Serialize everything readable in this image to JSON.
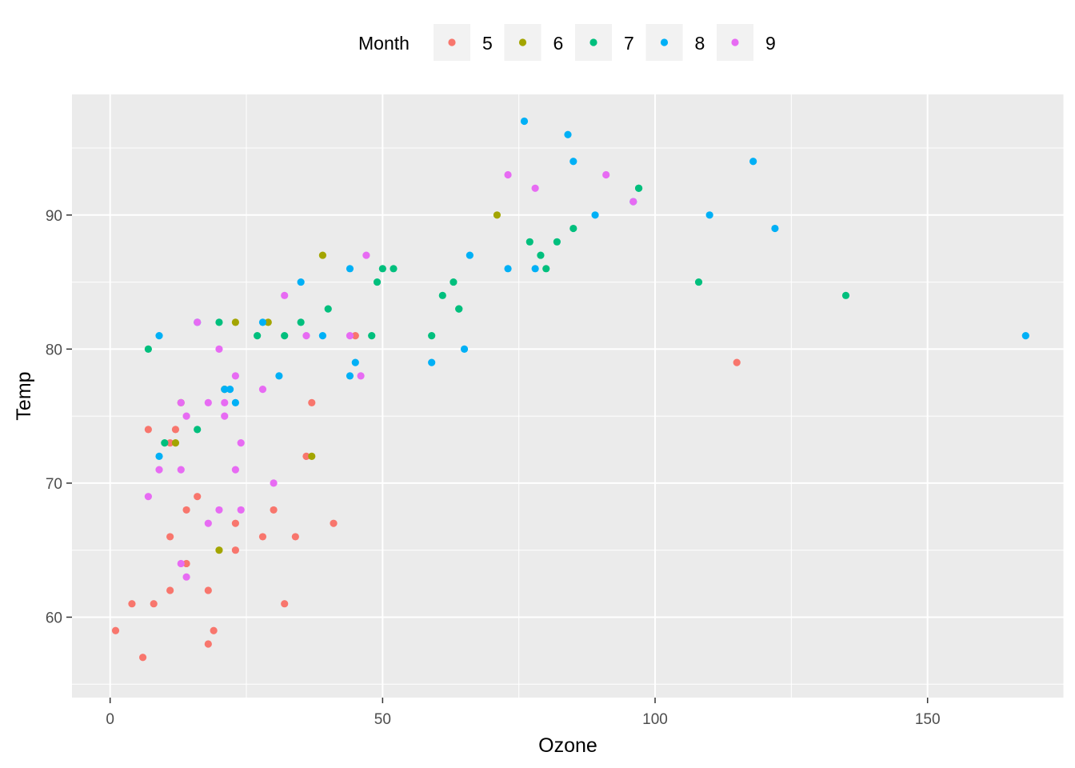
{
  "chart_data": {
    "type": "scatter",
    "xlabel": "Ozone",
    "ylabel": "Temp",
    "xlim": [
      -7,
      175
    ],
    "ylim": [
      54,
      99
    ],
    "x_ticks": [
      0,
      50,
      100,
      150
    ],
    "x_tick_labels": [
      "0",
      "50",
      "100",
      "150"
    ],
    "y_ticks": [
      60,
      70,
      80,
      90
    ],
    "y_tick_labels": [
      "60",
      "70",
      "80",
      "90"
    ],
    "grid": true,
    "legend": {
      "title": "Month",
      "position": "top",
      "entries": [
        "5",
        "6",
        "7",
        "8",
        "9"
      ]
    },
    "series": [
      {
        "name": "5",
        "color": "#F8766D",
        "points": [
          [
            41,
            67
          ],
          [
            36,
            72
          ],
          [
            12,
            74
          ],
          [
            18,
            62
          ],
          [
            28,
            66
          ],
          [
            23,
            65
          ],
          [
            19,
            59
          ],
          [
            8,
            61
          ],
          [
            7,
            74
          ],
          [
            16,
            69
          ],
          [
            11,
            66
          ],
          [
            14,
            68
          ],
          [
            18,
            58
          ],
          [
            14,
            64
          ],
          [
            34,
            66
          ],
          [
            6,
            57
          ],
          [
            30,
            68
          ],
          [
            11,
            62
          ],
          [
            1,
            59
          ],
          [
            11,
            73
          ],
          [
            4,
            61
          ],
          [
            32,
            61
          ],
          [
            23,
            67
          ],
          [
            45,
            81
          ],
          [
            115,
            79
          ],
          [
            37,
            76
          ]
        ]
      },
      {
        "name": "6",
        "color": "#A3A500",
        "points": [
          [
            29,
            82
          ],
          [
            71,
            90
          ],
          [
            39,
            87
          ],
          [
            23,
            82
          ],
          [
            21,
            77
          ],
          [
            37,
            72
          ],
          [
            20,
            65
          ],
          [
            12,
            73
          ],
          [
            13,
            76
          ]
        ]
      },
      {
        "name": "7",
        "color": "#00BF7D",
        "points": [
          [
            135,
            84
          ],
          [
            49,
            85
          ],
          [
            32,
            81
          ],
          [
            64,
            83
          ],
          [
            40,
            83
          ],
          [
            77,
            88
          ],
          [
            97,
            92
          ],
          [
            97,
            92
          ],
          [
            85,
            89
          ],
          [
            10,
            73
          ],
          [
            27,
            81
          ],
          [
            7,
            80
          ],
          [
            48,
            81
          ],
          [
            35,
            82
          ],
          [
            61,
            84
          ],
          [
            79,
            87
          ],
          [
            63,
            85
          ],
          [
            16,
            74
          ],
          [
            80,
            86
          ],
          [
            108,
            85
          ],
          [
            20,
            82
          ],
          [
            52,
            86
          ],
          [
            82,
            88
          ],
          [
            50,
            86
          ],
          [
            64,
            83
          ],
          [
            59,
            81
          ]
        ]
      },
      {
        "name": "8",
        "color": "#00B0F6",
        "points": [
          [
            39,
            81
          ],
          [
            9,
            81
          ],
          [
            16,
            82
          ],
          [
            78,
            86
          ],
          [
            35,
            85
          ],
          [
            66,
            87
          ],
          [
            122,
            89
          ],
          [
            89,
            90
          ],
          [
            110,
            90
          ],
          [
            44,
            86
          ],
          [
            28,
            82
          ],
          [
            65,
            80
          ],
          [
            22,
            77
          ],
          [
            59,
            79
          ],
          [
            23,
            76
          ],
          [
            31,
            78
          ],
          [
            44,
            78
          ],
          [
            21,
            77
          ],
          [
            9,
            72
          ],
          [
            45,
            79
          ],
          [
            168,
            81
          ],
          [
            73,
            86
          ],
          [
            76,
            97
          ],
          [
            118,
            94
          ],
          [
            84,
            96
          ],
          [
            85,
            94
          ],
          [
            96,
            91
          ]
        ]
      },
      {
        "name": "9",
        "color": "#E76BF3",
        "points": [
          [
            78,
            92
          ],
          [
            73,
            93
          ],
          [
            91,
            93
          ],
          [
            47,
            87
          ],
          [
            32,
            84
          ],
          [
            20,
            80
          ],
          [
            23,
            78
          ],
          [
            21,
            75
          ],
          [
            24,
            73
          ],
          [
            44,
            81
          ],
          [
            21,
            76
          ],
          [
            28,
            77
          ],
          [
            9,
            71
          ],
          [
            13,
            71
          ],
          [
            46,
            78
          ],
          [
            18,
            67
          ],
          [
            13,
            76
          ],
          [
            24,
            68
          ],
          [
            16,
            82
          ],
          [
            13,
            64
          ],
          [
            23,
            71
          ],
          [
            36,
            81
          ],
          [
            7,
            69
          ],
          [
            14,
            63
          ],
          [
            30,
            70
          ],
          [
            14,
            75
          ],
          [
            18,
            76
          ],
          [
            20,
            68
          ],
          [
            96,
            91
          ]
        ]
      }
    ]
  }
}
